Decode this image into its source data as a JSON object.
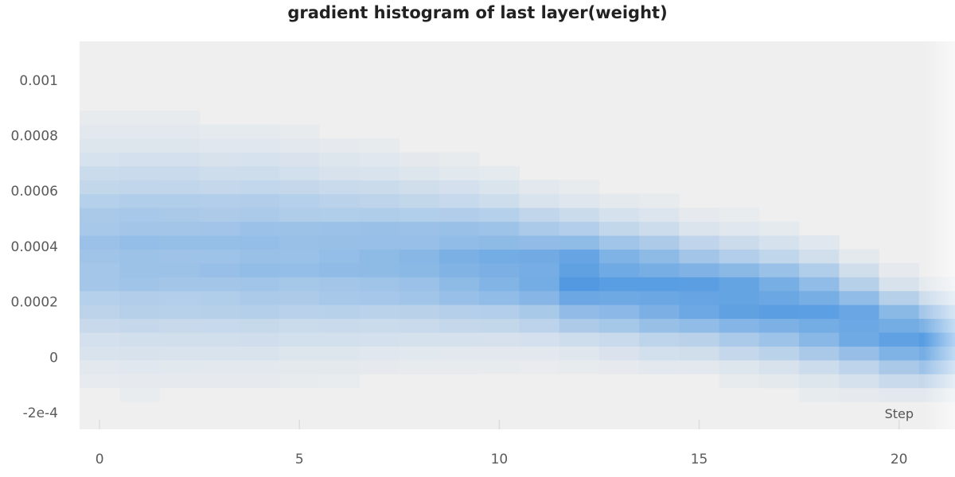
{
  "chart_data": {
    "type": "heatmap",
    "title": "gradient histogram of last layer(weight)",
    "xlabel": "Step",
    "ylabel": "",
    "xlim": [
      -0.5,
      21.4
    ],
    "ylim": [
      -0.00026,
      0.00114
    ],
    "x_ticks": [
      0,
      5,
      10,
      15,
      20
    ],
    "y_ticks": [
      0.001,
      0.0008,
      0.0006,
      0.0004,
      0.0002,
      0,
      -0.0002
    ],
    "y_tick_labels": [
      "0.001",
      "0.0008",
      "0.0006",
      "0.0004",
      "0.0002",
      "0",
      "-2e-4"
    ],
    "grid": false,
    "colors": {
      "background": "#efefef",
      "high": "#2e86de",
      "tick_mark": "#dddddd"
    },
    "steps": [
      0,
      1,
      2,
      3,
      4,
      5,
      6,
      7,
      8,
      9,
      10,
      11,
      12,
      13,
      14,
      15,
      16,
      17,
      18,
      19,
      20,
      21
    ],
    "distribution_by_step": [
      {
        "step": 0,
        "center": 0.00038,
        "spread": 0.00022,
        "peak": 0.42
      },
      {
        "step": 1,
        "center": 0.00038,
        "spread": 0.00022,
        "peak": 0.45
      },
      {
        "step": 2,
        "center": 0.00038,
        "spread": 0.00022,
        "peak": 0.44
      },
      {
        "step": 3,
        "center": 0.00037,
        "spread": 0.00021,
        "peak": 0.45
      },
      {
        "step": 4,
        "center": 0.00037,
        "spread": 0.00021,
        "peak": 0.47
      },
      {
        "step": 5,
        "center": 0.00037,
        "spread": 0.0002,
        "peak": 0.46
      },
      {
        "step": 6,
        "center": 0.00036,
        "spread": 0.00019,
        "peak": 0.48
      },
      {
        "step": 7,
        "center": 0.00036,
        "spread": 0.00018,
        "peak": 0.5
      },
      {
        "step": 8,
        "center": 0.00035,
        "spread": 0.00017,
        "peak": 0.52
      },
      {
        "step": 9,
        "center": 0.00034,
        "spread": 0.00016,
        "peak": 0.58
      },
      {
        "step": 10,
        "center": 0.00033,
        "spread": 0.00015,
        "peak": 0.62
      },
      {
        "step": 11,
        "center": 0.00031,
        "spread": 0.00014,
        "peak": 0.66
      },
      {
        "step": 12,
        "center": 0.00029,
        "spread": 0.00013,
        "peak": 0.8
      },
      {
        "step": 13,
        "center": 0.00027,
        "spread": 0.00013,
        "peak": 0.74
      },
      {
        "step": 14,
        "center": 0.00025,
        "spread": 0.00013,
        "peak": 0.74
      },
      {
        "step": 15,
        "center": 0.00023,
        "spread": 0.00012,
        "peak": 0.76
      },
      {
        "step": 16,
        "center": 0.00021,
        "spread": 0.00012,
        "peak": 0.76
      },
      {
        "step": 17,
        "center": 0.00019,
        "spread": 0.00012,
        "peak": 0.74
      },
      {
        "step": 18,
        "center": 0.00016,
        "spread": 0.00012,
        "peak": 0.72
      },
      {
        "step": 19,
        "center": 0.00012,
        "spread": 0.00011,
        "peak": 0.72
      },
      {
        "step": 20,
        "center": 8e-05,
        "spread": 0.0001,
        "peak": 0.72
      },
      {
        "step": 21,
        "center": 6e-05,
        "spread": 9e-05,
        "peak": 0.74
      }
    ]
  }
}
